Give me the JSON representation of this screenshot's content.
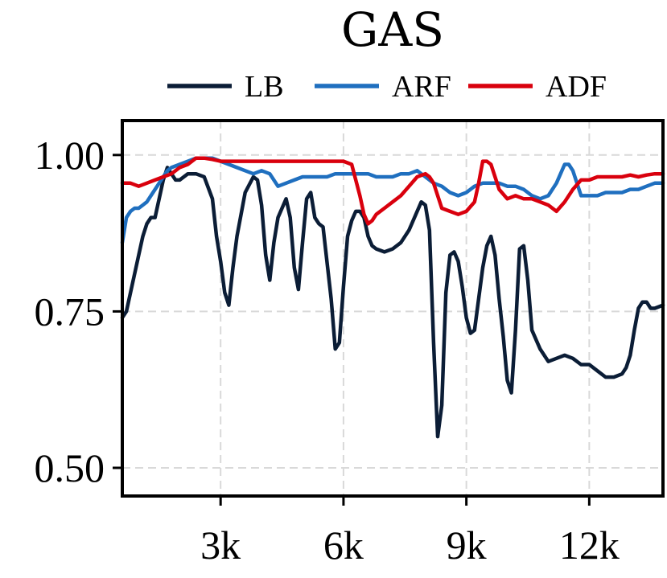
{
  "chart_data": {
    "type": "line",
    "title": "GAS",
    "xlabel": "",
    "ylabel": "",
    "xlim": [
      600,
      13800
    ],
    "ylim": [
      0.455,
      1.055
    ],
    "x_ticks": [
      3000,
      6000,
      9000,
      12000
    ],
    "x_tick_labels": [
      "3k",
      "6k",
      "9k",
      "12k"
    ],
    "y_ticks": [
      0.5,
      0.75,
      1.0
    ],
    "y_tick_labels": [
      "0.50",
      "0.75",
      "1.00"
    ],
    "grid": true,
    "legend_position": "top",
    "series": [
      {
        "name": "LB",
        "color": "#0b1d36",
        "x": [
          600,
          700,
          800,
          900,
          1000,
          1100,
          1200,
          1300,
          1400,
          1500,
          1600,
          1700,
          1800,
          1900,
          2000,
          2200,
          2400,
          2600,
          2800,
          2900,
          3000,
          3100,
          3200,
          3300,
          3400,
          3600,
          3800,
          3900,
          4000,
          4100,
          4200,
          4300,
          4400,
          4600,
          4700,
          4800,
          4900,
          5000,
          5100,
          5200,
          5300,
          5400,
          5500,
          5700,
          5800,
          5900,
          6000,
          6100,
          6200,
          6300,
          6400,
          6500,
          6600,
          6700,
          6800,
          7000,
          7200,
          7400,
          7600,
          7800,
          7900,
          8000,
          8100,
          8200,
          8300,
          8400,
          8500,
          8600,
          8700,
          8800,
          8900,
          9000,
          9100,
          9200,
          9300,
          9400,
          9500,
          9600,
          9700,
          9800,
          9900,
          10000,
          10100,
          10200,
          10300,
          10400,
          10500,
          10600,
          10800,
          11000,
          11200,
          11400,
          11600,
          11800,
          12000,
          12200,
          12400,
          12600,
          12800,
          12900,
          13000,
          13100,
          13200,
          13300,
          13400,
          13500,
          13600,
          13800
        ],
        "values": [
          0.74,
          0.75,
          0.78,
          0.81,
          0.84,
          0.87,
          0.89,
          0.9,
          0.9,
          0.93,
          0.96,
          0.98,
          0.97,
          0.96,
          0.96,
          0.97,
          0.97,
          0.965,
          0.93,
          0.87,
          0.83,
          0.78,
          0.76,
          0.82,
          0.87,
          0.94,
          0.965,
          0.96,
          0.92,
          0.84,
          0.8,
          0.86,
          0.9,
          0.93,
          0.9,
          0.82,
          0.785,
          0.86,
          0.93,
          0.94,
          0.9,
          0.89,
          0.885,
          0.77,
          0.69,
          0.7,
          0.79,
          0.87,
          0.895,
          0.91,
          0.91,
          0.9,
          0.87,
          0.855,
          0.85,
          0.845,
          0.85,
          0.86,
          0.88,
          0.91,
          0.925,
          0.92,
          0.88,
          0.7,
          0.55,
          0.6,
          0.78,
          0.84,
          0.845,
          0.83,
          0.79,
          0.74,
          0.715,
          0.72,
          0.77,
          0.82,
          0.855,
          0.87,
          0.84,
          0.77,
          0.71,
          0.64,
          0.62,
          0.72,
          0.85,
          0.855,
          0.8,
          0.72,
          0.69,
          0.67,
          0.675,
          0.68,
          0.675,
          0.665,
          0.665,
          0.655,
          0.645,
          0.645,
          0.65,
          0.66,
          0.68,
          0.72,
          0.755,
          0.765,
          0.765,
          0.755,
          0.755,
          0.76
        ]
      },
      {
        "name": "ARF",
        "color": "#1f6fbf",
        "x": [
          600,
          700,
          800,
          900,
          1000,
          1100,
          1200,
          1300,
          1400,
          1500,
          1600,
          1700,
          1800,
          2000,
          2200,
          2400,
          2600,
          2800,
          3000,
          3200,
          3400,
          3600,
          3800,
          4000,
          4200,
          4400,
          4600,
          4800,
          5000,
          5200,
          5400,
          5600,
          5800,
          6000,
          6200,
          6400,
          6600,
          6800,
          7000,
          7200,
          7400,
          7600,
          7800,
          8000,
          8200,
          8400,
          8600,
          8800,
          9000,
          9200,
          9400,
          9600,
          9800,
          10000,
          10200,
          10400,
          10600,
          10800,
          11000,
          11200,
          11400,
          11500,
          11600,
          11700,
          11800,
          12000,
          12200,
          12400,
          12600,
          12800,
          13000,
          13200,
          13400,
          13600,
          13800
        ],
        "values": [
          0.86,
          0.9,
          0.91,
          0.915,
          0.915,
          0.92,
          0.925,
          0.935,
          0.945,
          0.955,
          0.965,
          0.975,
          0.98,
          0.985,
          0.99,
          0.995,
          0.995,
          0.995,
          0.99,
          0.985,
          0.98,
          0.975,
          0.97,
          0.975,
          0.97,
          0.95,
          0.955,
          0.96,
          0.965,
          0.965,
          0.965,
          0.965,
          0.97,
          0.97,
          0.97,
          0.97,
          0.97,
          0.965,
          0.965,
          0.965,
          0.97,
          0.97,
          0.975,
          0.965,
          0.955,
          0.95,
          0.94,
          0.935,
          0.94,
          0.95,
          0.955,
          0.955,
          0.955,
          0.95,
          0.95,
          0.945,
          0.935,
          0.93,
          0.935,
          0.955,
          0.985,
          0.985,
          0.975,
          0.955,
          0.935,
          0.935,
          0.935,
          0.94,
          0.94,
          0.94,
          0.945,
          0.945,
          0.95,
          0.955,
          0.955
        ]
      },
      {
        "name": "ADF",
        "color": "#d9000d",
        "x": [
          600,
          800,
          1000,
          1200,
          1400,
          1600,
          1800,
          2000,
          2200,
          2400,
          2600,
          2800,
          3000,
          3200,
          3400,
          3600,
          3800,
          4000,
          4200,
          4400,
          4600,
          4800,
          5000,
          5200,
          5400,
          5600,
          5800,
          6000,
          6200,
          6300,
          6400,
          6500,
          6600,
          6700,
          6800,
          7000,
          7200,
          7400,
          7600,
          7800,
          8000,
          8100,
          8200,
          8300,
          8400,
          8600,
          8800,
          9000,
          9200,
          9300,
          9400,
          9500,
          9600,
          9800,
          10000,
          10200,
          10400,
          10600,
          10800,
          11000,
          11200,
          11400,
          11600,
          11800,
          12000,
          12200,
          12400,
          12600,
          12800,
          13000,
          13200,
          13400,
          13600,
          13800
        ],
        "values": [
          0.955,
          0.955,
          0.95,
          0.955,
          0.96,
          0.965,
          0.97,
          0.98,
          0.985,
          0.995,
          0.995,
          0.993,
          0.99,
          0.99,
          0.99,
          0.99,
          0.99,
          0.99,
          0.99,
          0.99,
          0.99,
          0.99,
          0.99,
          0.99,
          0.99,
          0.99,
          0.99,
          0.99,
          0.985,
          0.96,
          0.935,
          0.905,
          0.89,
          0.895,
          0.905,
          0.915,
          0.925,
          0.935,
          0.95,
          0.965,
          0.97,
          0.965,
          0.955,
          0.935,
          0.915,
          0.91,
          0.905,
          0.91,
          0.925,
          0.955,
          0.99,
          0.99,
          0.985,
          0.945,
          0.93,
          0.935,
          0.93,
          0.93,
          0.925,
          0.92,
          0.91,
          0.925,
          0.945,
          0.96,
          0.96,
          0.965,
          0.965,
          0.965,
          0.965,
          0.968,
          0.965,
          0.968,
          0.97,
          0.97
        ]
      }
    ]
  }
}
